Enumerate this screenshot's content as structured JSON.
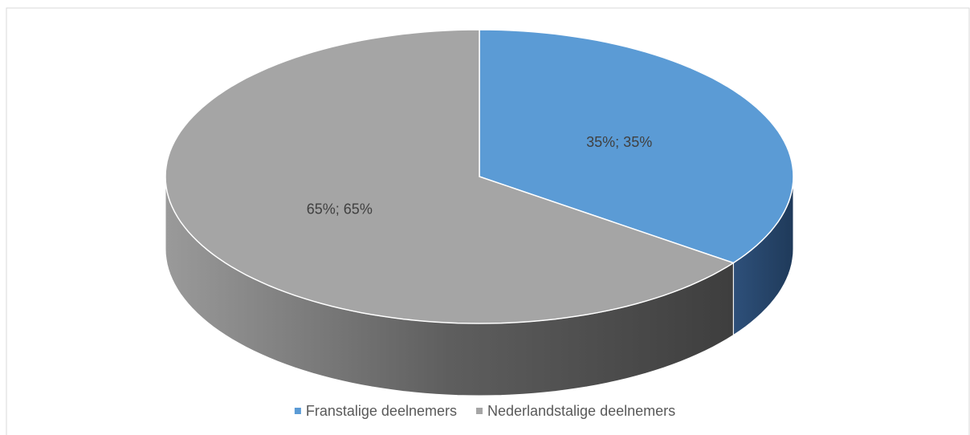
{
  "chart_data": {
    "type": "pie",
    "categories": [
      "Franstalige deelnemers",
      "Nederlandstalige deelnemers"
    ],
    "values": [
      35,
      65
    ],
    "value_labels": [
      "35%; 35%",
      "65%; 65%"
    ],
    "colors": [
      "#5b9bd5",
      "#a5a5a5"
    ],
    "legend": "bottom"
  }
}
